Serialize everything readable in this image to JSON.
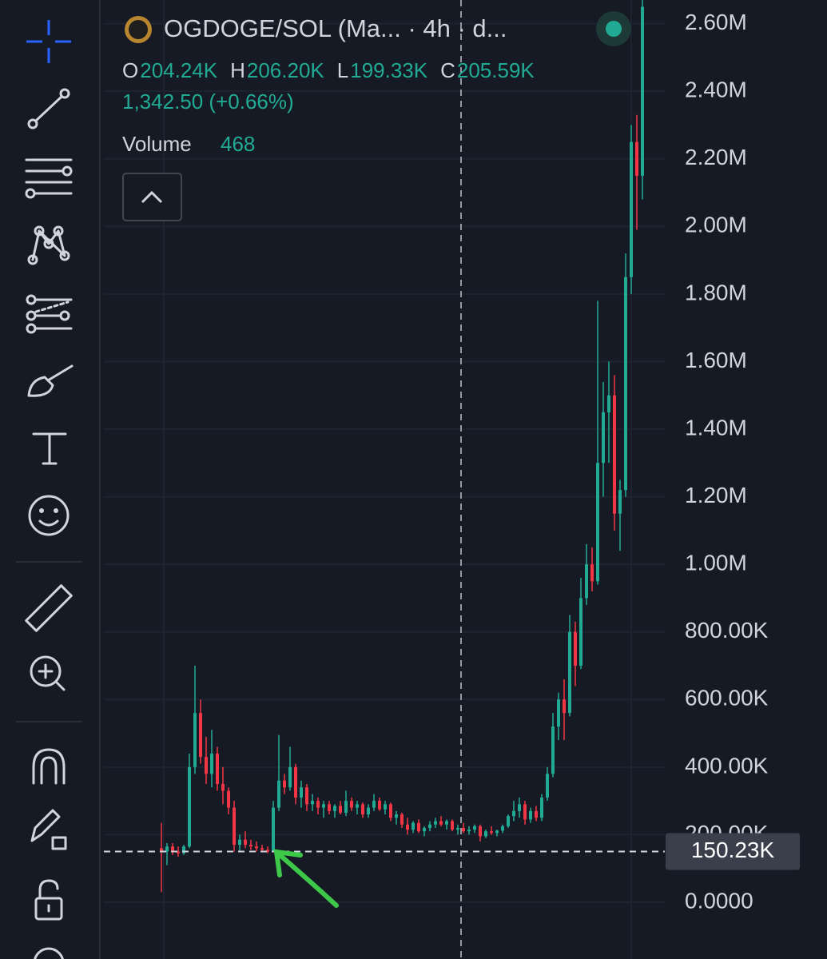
{
  "chart_data": {
    "type": "candlestick",
    "title": "OGDOGE/SOL (Ma... · 4h · d...",
    "ohlc_labels": [
      "O",
      "H",
      "L",
      "C"
    ],
    "ohlc_values": [
      "204.24K",
      "206.20K",
      "199.33K",
      "205.59K"
    ],
    "change": "1,342.50 (+0.66%)",
    "volume_label": "Volume",
    "volume_value": "468",
    "up_color": "#22ab94",
    "down_color": "#f23645",
    "ylim": [
      0,
      2670
    ],
    "yticks": [
      {
        "value": 0,
        "label": "0.0000"
      },
      {
        "value": 200,
        "label": "200.00K"
      },
      {
        "value": 400,
        "label": "400.00K"
      },
      {
        "value": 600,
        "label": "600.00K"
      },
      {
        "value": 800,
        "label": "800.00K"
      },
      {
        "value": 1000,
        "label": "1.00M"
      },
      {
        "value": 1200,
        "label": "1.20M"
      },
      {
        "value": 1400,
        "label": "1.40M"
      },
      {
        "value": 1600,
        "label": "1.60M"
      },
      {
        "value": 1800,
        "label": "1.80M"
      },
      {
        "value": 2000,
        "label": "2.00M"
      },
      {
        "value": 2200,
        "label": "2.20M"
      },
      {
        "value": 2400,
        "label": "2.40M"
      },
      {
        "value": 2600,
        "label": "2.60M"
      }
    ],
    "grid": true,
    "price_line": {
      "value": 150.23,
      "label": "150.23K"
    },
    "candles": [
      [
        160,
        235,
        30,
        150
      ],
      [
        150,
        175,
        110,
        165
      ],
      [
        165,
        175,
        140,
        150
      ],
      [
        150,
        165,
        135,
        145
      ],
      [
        145,
        170,
        140,
        165
      ],
      [
        165,
        440,
        160,
        400
      ],
      [
        400,
        700,
        380,
        560
      ],
      [
        560,
        600,
        410,
        430
      ],
      [
        430,
        490,
        350,
        380
      ],
      [
        380,
        510,
        340,
        440
      ],
      [
        440,
        460,
        330,
        350
      ],
      [
        350,
        400,
        290,
        330
      ],
      [
        330,
        340,
        260,
        280
      ],
      [
        280,
        300,
        150,
        170
      ],
      [
        170,
        200,
        150,
        185
      ],
      [
        185,
        210,
        160,
        170
      ],
      [
        170,
        185,
        155,
        165
      ],
      [
        165,
        180,
        150,
        160
      ],
      [
        160,
        170,
        148,
        155
      ],
      [
        155,
        165,
        145,
        150
      ],
      [
        150,
        300,
        148,
        280
      ],
      [
        280,
        495,
        270,
        360
      ],
      [
        360,
        380,
        320,
        340
      ],
      [
        340,
        460,
        330,
        400
      ],
      [
        400,
        410,
        290,
        310
      ],
      [
        310,
        360,
        280,
        340
      ],
      [
        340,
        350,
        270,
        290
      ],
      [
        290,
        320,
        270,
        300
      ],
      [
        300,
        310,
        260,
        280
      ],
      [
        280,
        300,
        250,
        290
      ],
      [
        290,
        300,
        260,
        270
      ],
      [
        270,
        290,
        250,
        285
      ],
      [
        285,
        300,
        260,
        265
      ],
      [
        265,
        330,
        255,
        300
      ],
      [
        300,
        310,
        270,
        280
      ],
      [
        280,
        300,
        260,
        290
      ],
      [
        290,
        295,
        250,
        260
      ],
      [
        260,
        290,
        250,
        280
      ],
      [
        280,
        320,
        270,
        300
      ],
      [
        300,
        310,
        270,
        275
      ],
      [
        275,
        300,
        260,
        290
      ],
      [
        290,
        295,
        240,
        250
      ],
      [
        250,
        270,
        230,
        260
      ],
      [
        260,
        265,
        220,
        230
      ],
      [
        230,
        250,
        200,
        215
      ],
      [
        215,
        240,
        205,
        235
      ],
      [
        235,
        245,
        205,
        210
      ],
      [
        210,
        225,
        195,
        220
      ],
      [
        220,
        240,
        210,
        230
      ],
      [
        230,
        250,
        220,
        240
      ],
      [
        240,
        255,
        225,
        230
      ],
      [
        230,
        245,
        215,
        240
      ],
      [
        240,
        245,
        210,
        215
      ],
      [
        215,
        230,
        200,
        220
      ],
      [
        220,
        235,
        205,
        210
      ],
      [
        210,
        225,
        200,
        215
      ],
      [
        215,
        230,
        205,
        225
      ],
      [
        225,
        230,
        180,
        195
      ],
      [
        195,
        215,
        190,
        210
      ],
      [
        210,
        225,
        200,
        205
      ],
      [
        205,
        215,
        195,
        212
      ],
      [
        212,
        230,
        205,
        225
      ],
      [
        225,
        260,
        220,
        255
      ],
      [
        255,
        300,
        240,
        270
      ],
      [
        270,
        310,
        250,
        290
      ],
      [
        290,
        300,
        230,
        245
      ],
      [
        245,
        280,
        235,
        270
      ],
      [
        270,
        285,
        240,
        250
      ],
      [
        250,
        320,
        240,
        310
      ],
      [
        310,
        400,
        300,
        380
      ],
      [
        380,
        560,
        370,
        520
      ],
      [
        520,
        620,
        480,
        600
      ],
      [
        600,
        660,
        480,
        560
      ],
      [
        560,
        850,
        550,
        800
      ],
      [
        800,
        830,
        640,
        700
      ],
      [
        700,
        960,
        690,
        900
      ],
      [
        900,
        1060,
        880,
        1000
      ],
      [
        1000,
        1050,
        920,
        950
      ],
      [
        950,
        1780,
        940,
        1300
      ],
      [
        1300,
        1540,
        1200,
        1450
      ],
      [
        1450,
        1600,
        1300,
        1500
      ],
      [
        1500,
        1560,
        1100,
        1150
      ],
      [
        1150,
        1250,
        1040,
        1220
      ],
      [
        1220,
        1920,
        1200,
        1850
      ],
      [
        1850,
        2300,
        1800,
        2250
      ],
      [
        2250,
        2330,
        1990,
        2150
      ],
      [
        2150,
        2700,
        2080,
        2650
      ]
    ]
  }
}
